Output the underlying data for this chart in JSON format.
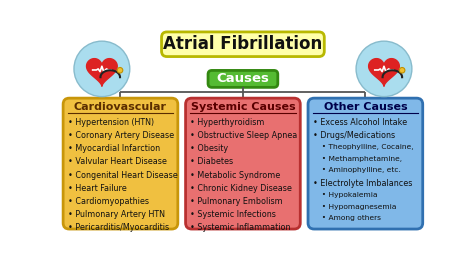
{
  "title": "Atrial Fibrillation",
  "subtitle": "Causes",
  "bg_color": "#ffffff",
  "title_box_color": "#ffffaa",
  "title_border_color": "#b8b800",
  "causes_box_color": "#55bb33",
  "causes_border_color": "#338811",
  "panels": [
    {
      "header": "Cardiovascular",
      "box_color": "#f0c040",
      "border_color": "#c8960a",
      "header_color": "#5a2d00",
      "items": [
        {
          "text": "Hypertension (HTN)",
          "level": 0
        },
        {
          "text": "Coronary Artery Disease",
          "level": 0
        },
        {
          "text": "Myocardial Infarction",
          "level": 0
        },
        {
          "text": "Valvular Heart Disease",
          "level": 0
        },
        {
          "text": "Congenital Heart Disease",
          "level": 0
        },
        {
          "text": "Heart Failure",
          "level": 0
        },
        {
          "text": "Cardiomyopathies",
          "level": 0
        },
        {
          "text": "Pulmonary Artery HTN",
          "level": 0
        },
        {
          "text": "Pericarditis/Myocarditis",
          "level": 0
        }
      ]
    },
    {
      "header": "Systemic Causes",
      "box_color": "#e87070",
      "border_color": "#b83030",
      "header_color": "#5a0000",
      "items": [
        {
          "text": "Hyperthyroidism",
          "level": 0
        },
        {
          "text": "Obstructive Sleep Apnea",
          "level": 0
        },
        {
          "text": "Obesity",
          "level": 0
        },
        {
          "text": "Diabetes",
          "level": 0
        },
        {
          "text": "Metabolic Syndrome",
          "level": 0
        },
        {
          "text": "Chronic Kidney Disease",
          "level": 0
        },
        {
          "text": "Pulmonary Embolism",
          "level": 0
        },
        {
          "text": "Systemic Infections",
          "level": 0
        },
        {
          "text": "Systemic Inflammation",
          "level": 0
        }
      ]
    },
    {
      "header": "Other Causes",
      "box_color": "#80b8e8",
      "border_color": "#3070b0",
      "header_color": "#00004a",
      "items": [
        {
          "text": "Excess Alcohol Intake",
          "level": 0
        },
        {
          "text": "Drugs/Medications",
          "level": 0
        },
        {
          "text": "Theophylline, Cocaine,",
          "level": 1
        },
        {
          "text": "Methamphetamine,",
          "level": 1
        },
        {
          "text": "Aminophylline, etc.",
          "level": 1
        },
        {
          "text": "Electrolyte Imbalances",
          "level": 0
        },
        {
          "text": "Hypokalemia",
          "level": 1
        },
        {
          "text": "Hypomagnesemia",
          "level": 1
        },
        {
          "text": "Among others",
          "level": 1
        }
      ]
    }
  ],
  "line_color": "#555555",
  "item_color": "#111111",
  "item_fontsize": 5.8,
  "subitem_fontsize": 5.4,
  "header_fontsize": 8.0
}
